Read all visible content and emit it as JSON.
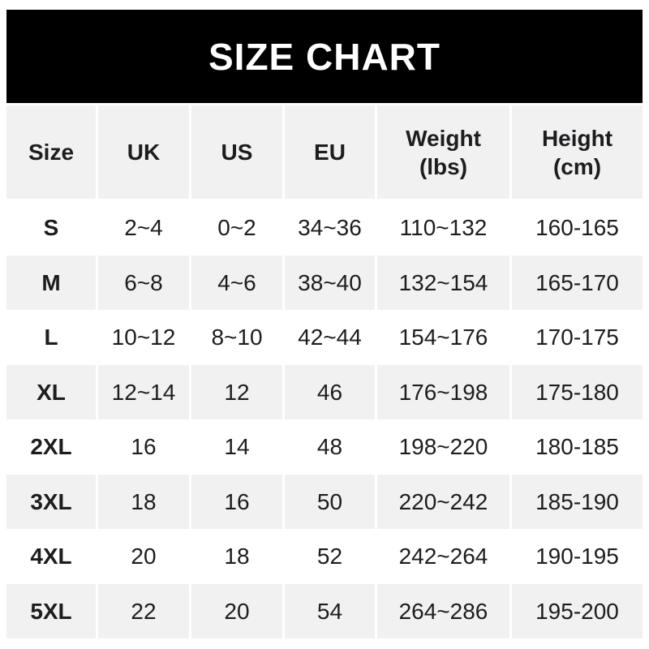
{
  "title": "SIZE CHART",
  "colors": {
    "banner_bg": "#000000",
    "banner_text": "#ffffff",
    "alt_row_bg": "#f1f1f2",
    "text": "#1d1d1f",
    "page_bg": "#ffffff"
  },
  "chart_data": {
    "type": "table",
    "title": "SIZE CHART",
    "columns": [
      {
        "label": "Size",
        "sub": ""
      },
      {
        "label": "UK",
        "sub": ""
      },
      {
        "label": "US",
        "sub": ""
      },
      {
        "label": "EU",
        "sub": ""
      },
      {
        "label": "Weight",
        "sub": "(lbs)"
      },
      {
        "label": "Height",
        "sub": "(cm)"
      }
    ],
    "rows": [
      [
        "S",
        "2~4",
        "0~2",
        "34~36",
        "110~132",
        "160-165"
      ],
      [
        "M",
        "6~8",
        "4~6",
        "38~40",
        "132~154",
        "165-170"
      ],
      [
        "L",
        "10~12",
        "8~10",
        "42~44",
        "154~176",
        "170-175"
      ],
      [
        "XL",
        "12~14",
        "12",
        "46",
        "176~198",
        "175-180"
      ],
      [
        "2XL",
        "16",
        "14",
        "48",
        "198~220",
        "180-185"
      ],
      [
        "3XL",
        "18",
        "16",
        "50",
        "220~242",
        "185-190"
      ],
      [
        "4XL",
        "20",
        "18",
        "52",
        "242~264",
        "190-195"
      ],
      [
        "5XL",
        "22",
        "20",
        "54",
        "264~286",
        "195-200"
      ]
    ],
    "layout": {
      "alternating_row_shading": true,
      "first_shaded_row_index": 1,
      "header_shaded": true,
      "column_gutters": "white"
    }
  }
}
